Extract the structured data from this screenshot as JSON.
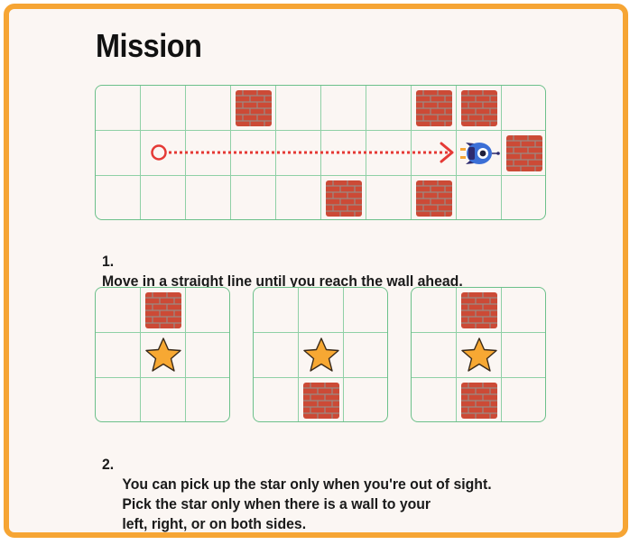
{
  "title": "Mission",
  "colors": {
    "border": "#f6a534",
    "background": "#fbf6f3",
    "grid_line": "#8fd0a6",
    "brick": "#cc4a36",
    "mortar": "#9a8a84",
    "star": "#f7a833",
    "path": "#e53935",
    "robot": "#3b6fd6"
  },
  "step1": {
    "number": "1.",
    "text": "Move in a straight line until you reach the wall ahead.",
    "grid": {
      "rows": 3,
      "cols": 10,
      "cells": [
        [
          "",
          "",
          "",
          "brick",
          "",
          "",
          "",
          "brick",
          "brick",
          ""
        ],
        [
          "",
          "start",
          "",
          "",
          "",
          "",
          "",
          "",
          "robot",
          "brick"
        ],
        [
          "",
          "",
          "",
          "",
          "",
          "brick",
          "",
          "brick",
          "",
          ""
        ]
      ]
    }
  },
  "step2": {
    "number": "2.",
    "text": "You can pick up the star only when you're out of sight.\nPick the star only when there is a wall to your\nleft, right, or on both sides.",
    "examples": [
      {
        "cells": [
          [
            "",
            "brick",
            ""
          ],
          [
            "",
            "star",
            ""
          ],
          [
            "",
            "",
            ""
          ]
        ]
      },
      {
        "cells": [
          [
            "",
            "",
            ""
          ],
          [
            "",
            "star",
            ""
          ],
          [
            "",
            "brick",
            ""
          ]
        ]
      },
      {
        "cells": [
          [
            "",
            "brick",
            ""
          ],
          [
            "",
            "star",
            ""
          ],
          [
            "",
            "brick",
            ""
          ]
        ]
      }
    ]
  }
}
